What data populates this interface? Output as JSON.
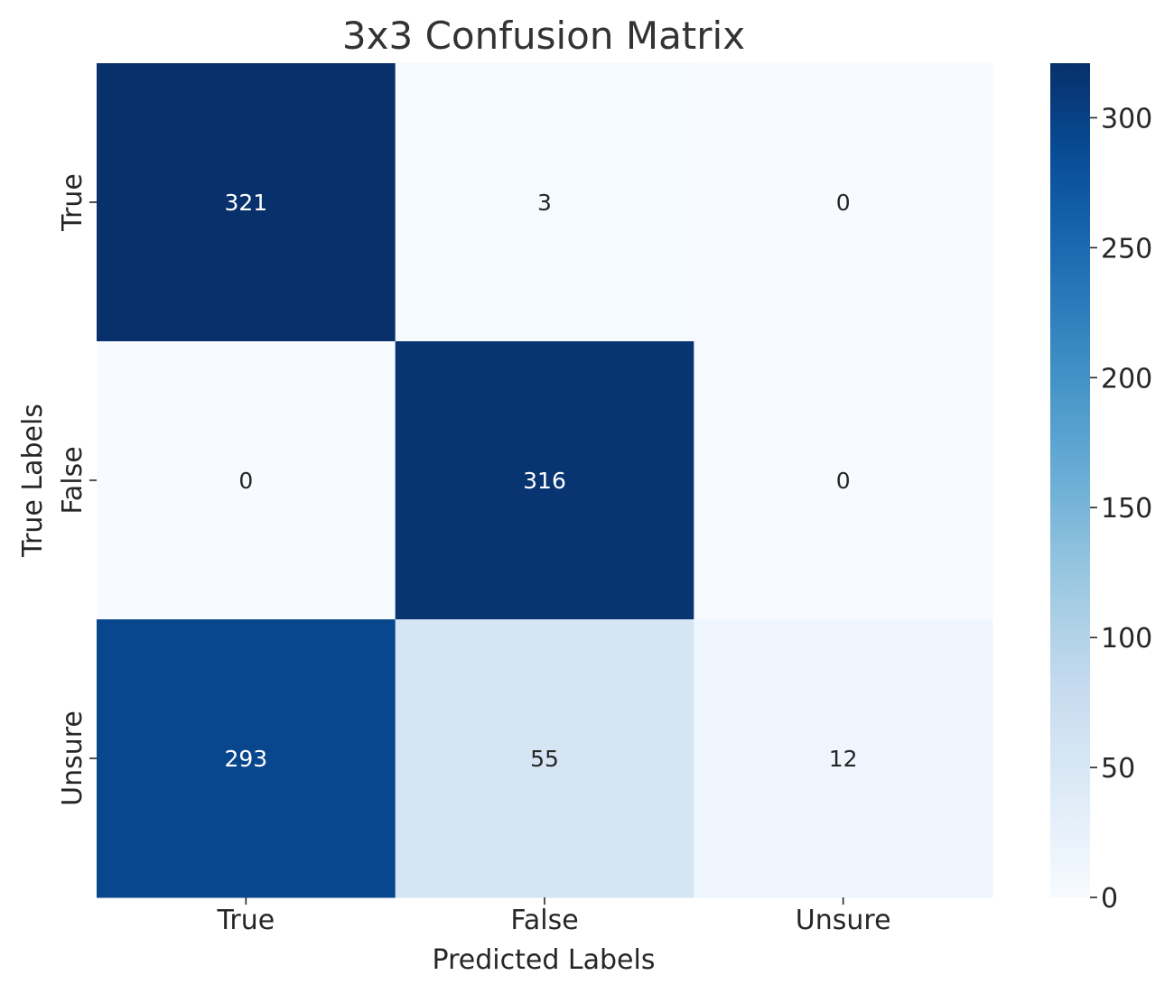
{
  "chart_data": {
    "type": "heatmap",
    "title": "3x3 Confusion Matrix",
    "xlabel": "Predicted Labels",
    "ylabel": "True Labels",
    "x_categories": [
      "True",
      "False",
      "Unsure"
    ],
    "y_categories": [
      "True",
      "False",
      "Unsure"
    ],
    "matrix": [
      [
        321,
        3,
        0
      ],
      [
        0,
        316,
        0
      ],
      [
        293,
        55,
        12
      ]
    ],
    "colormap": "Blues",
    "value_range": [
      0,
      321
    ],
    "colorbar": {
      "ticks": [
        0,
        50,
        100,
        150,
        200,
        250,
        300
      ],
      "tick_labels": [
        "0",
        "50",
        "100",
        "150",
        "200",
        "250",
        "300"
      ]
    },
    "grid": false
  }
}
